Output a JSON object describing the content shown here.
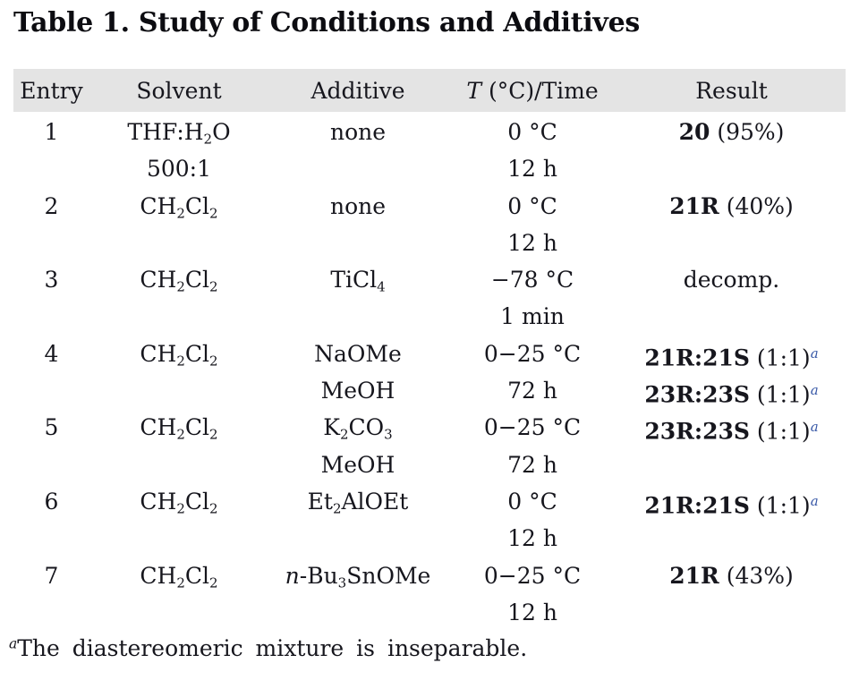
{
  "title": "Table 1. Study of Conditions and Additives",
  "colors": {
    "header_bg": "#e4e4e4",
    "text": "#16161d",
    "footnote_link_blue": "#3a5aa8"
  },
  "footnote": {
    "marker": "a",
    "text": "The diastereomeric mixture is inseparable."
  },
  "table": {
    "column_keys": [
      "entry",
      "solvent",
      "additive",
      "temp-time",
      "result"
    ],
    "headers": [
      [
        {
          "t": "Entry"
        }
      ],
      [
        {
          "t": "Solvent"
        }
      ],
      [
        {
          "t": "Additive"
        }
      ],
      [
        {
          "t": "T",
          "s": "i"
        },
        {
          "t": " (°C)/Time"
        }
      ],
      [
        {
          "t": "Result"
        }
      ]
    ],
    "rows": [
      {
        "entry": [
          [
            {
              "t": "1"
            }
          ]
        ],
        "solvent": [
          [
            {
              "t": "THF:H"
            },
            {
              "t": "2",
              "s": "sub"
            },
            {
              "t": "O"
            }
          ],
          [
            {
              "t": "500:1"
            }
          ]
        ],
        "additive": [
          [
            {
              "t": "none"
            }
          ]
        ],
        "temp-time": [
          [
            {
              "t": "0 °C"
            }
          ],
          [
            {
              "t": "12 h"
            }
          ]
        ],
        "result": [
          [
            {
              "t": "20",
              "s": "b"
            },
            {
              "t": " (95%)"
            }
          ]
        ]
      },
      {
        "entry": [
          [
            {
              "t": "2"
            }
          ]
        ],
        "solvent": [
          [
            {
              "t": "CH"
            },
            {
              "t": "2",
              "s": "sub"
            },
            {
              "t": "Cl"
            },
            {
              "t": "2",
              "s": "sub"
            }
          ]
        ],
        "additive": [
          [
            {
              "t": "none"
            }
          ]
        ],
        "temp-time": [
          [
            {
              "t": "0 °C"
            }
          ],
          [
            {
              "t": "12 h"
            }
          ]
        ],
        "result": [
          [
            {
              "t": "21R",
              "s": "b"
            },
            {
              "t": " (40%)"
            }
          ]
        ]
      },
      {
        "entry": [
          [
            {
              "t": "3"
            }
          ]
        ],
        "solvent": [
          [
            {
              "t": "CH"
            },
            {
              "t": "2",
              "s": "sub"
            },
            {
              "t": "Cl"
            },
            {
              "t": "2",
              "s": "sub"
            }
          ]
        ],
        "additive": [
          [
            {
              "t": "TiCl"
            },
            {
              "t": "4",
              "s": "sub"
            }
          ]
        ],
        "temp-time": [
          [
            {
              "t": "−78 °C"
            }
          ],
          [
            {
              "t": "1 min"
            }
          ]
        ],
        "result": [
          [
            {
              "t": "decomp."
            }
          ]
        ]
      },
      {
        "entry": [
          [
            {
              "t": "4"
            }
          ]
        ],
        "solvent": [
          [
            {
              "t": "CH"
            },
            {
              "t": "2",
              "s": "sub"
            },
            {
              "t": "Cl"
            },
            {
              "t": "2",
              "s": "sub"
            }
          ]
        ],
        "additive": [
          [
            {
              "t": "NaOMe"
            }
          ],
          [
            {
              "t": "MeOH"
            }
          ]
        ],
        "temp-time": [
          [
            {
              "t": "0−25 °C"
            }
          ],
          [
            {
              "t": "72 h"
            }
          ]
        ],
        "result": [
          [
            {
              "t": "21R:21S",
              "s": "b"
            },
            {
              "t": " (1:1)"
            },
            {
              "t": "a",
              "s": "a"
            }
          ],
          [
            {
              "t": "23R:23S",
              "s": "b"
            },
            {
              "t": " (1:1)"
            },
            {
              "t": "a",
              "s": "a"
            }
          ]
        ]
      },
      {
        "entry": [
          [
            {
              "t": "5"
            }
          ]
        ],
        "solvent": [
          [
            {
              "t": "CH"
            },
            {
              "t": "2",
              "s": "sub"
            },
            {
              "t": "Cl"
            },
            {
              "t": "2",
              "s": "sub"
            }
          ]
        ],
        "additive": [
          [
            {
              "t": "K"
            },
            {
              "t": "2",
              "s": "sub"
            },
            {
              "t": "CO"
            },
            {
              "t": "3",
              "s": "sub"
            }
          ],
          [
            {
              "t": "MeOH"
            }
          ]
        ],
        "temp-time": [
          [
            {
              "t": "0−25 °C"
            }
          ],
          [
            {
              "t": "72 h"
            }
          ]
        ],
        "result": [
          [
            {
              "t": "23R:23S",
              "s": "b"
            },
            {
              "t": " (1:1)"
            },
            {
              "t": "a",
              "s": "a"
            }
          ]
        ]
      },
      {
        "entry": [
          [
            {
              "t": "6"
            }
          ]
        ],
        "solvent": [
          [
            {
              "t": "CH"
            },
            {
              "t": "2",
              "s": "sub"
            },
            {
              "t": "Cl"
            },
            {
              "t": "2",
              "s": "sub"
            }
          ]
        ],
        "additive": [
          [
            {
              "t": "Et"
            },
            {
              "t": "2",
              "s": "sub"
            },
            {
              "t": "AlOEt"
            }
          ]
        ],
        "temp-time": [
          [
            {
              "t": "0 °C"
            }
          ],
          [
            {
              "t": "12 h"
            }
          ]
        ],
        "result": [
          [
            {
              "t": "21R:21S",
              "s": "b"
            },
            {
              "t": " (1:1)"
            },
            {
              "t": "a",
              "s": "a"
            }
          ]
        ]
      },
      {
        "entry": [
          [
            {
              "t": "7"
            }
          ]
        ],
        "solvent": [
          [
            {
              "t": "CH"
            },
            {
              "t": "2",
              "s": "sub"
            },
            {
              "t": "Cl"
            },
            {
              "t": "2",
              "s": "sub"
            }
          ]
        ],
        "additive": [
          [
            {
              "t": "n",
              "s": "i"
            },
            {
              "t": "-Bu"
            },
            {
              "t": "3",
              "s": "sub"
            },
            {
              "t": "SnOMe"
            }
          ]
        ],
        "temp-time": [
          [
            {
              "t": "0−25 °C"
            }
          ],
          [
            {
              "t": "12 h"
            }
          ]
        ],
        "result": [
          [
            {
              "t": "21R",
              "s": "b"
            },
            {
              "t": " (43%)"
            }
          ]
        ]
      }
    ]
  }
}
